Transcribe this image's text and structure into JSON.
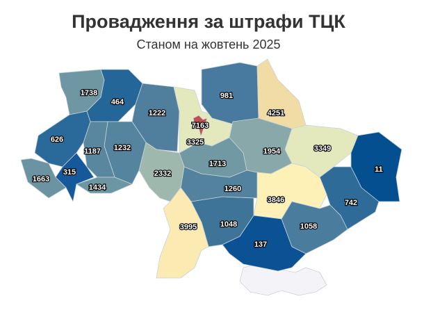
{
  "title": "Провадження за штрафи ТЦК",
  "subtitle": "Станом на жовтень 2025",
  "chart_data": {
    "type": "choropleth",
    "regions": [
      {
        "value": 1738,
        "color": "#6f97a3"
      },
      {
        "value": 464,
        "color": "#256699"
      },
      {
        "value": 1222,
        "color": "#4f7f9c"
      },
      {
        "value": 3325,
        "color": "#e3e8bd"
      },
      {
        "value": 981,
        "color": "#477a9e"
      },
      {
        "value": 4251,
        "color": "#f2dca6"
      },
      {
        "value": 3349,
        "color": "#e3e8bd"
      },
      {
        "value": 11,
        "color": "#034f90"
      },
      {
        "value": 742,
        "color": "#2e6b99"
      },
      {
        "value": 1954,
        "color": "#88a8aa"
      },
      {
        "value": 3846,
        "color": "#fdf1b8"
      },
      {
        "value": 1058,
        "color": "#4a7d9d"
      },
      {
        "value": 137,
        "color": "#0a5293"
      },
      {
        "value": 1048,
        "color": "#3f7499"
      },
      {
        "value": 1260,
        "color": "#52829d"
      },
      {
        "value": 1713,
        "color": "#7099a3"
      },
      {
        "value": 2332,
        "color": "#9fb8ad"
      },
      {
        "value": 3995,
        "color": "#fbeab2"
      },
      {
        "value": 1232,
        "color": "#55849f"
      },
      {
        "value": 1187,
        "color": "#5a87a0"
      },
      {
        "value": 626,
        "color": "#2a6a9b"
      },
      {
        "value": 315,
        "color": "#15599a"
      },
      {
        "value": 1663,
        "color": "#6b93a2"
      },
      {
        "value": 1434,
        "color": "#6d96a3"
      },
      {
        "value": 7163,
        "color": "#c0504d"
      }
    ],
    "no_data_color": "#f4f4f8"
  }
}
